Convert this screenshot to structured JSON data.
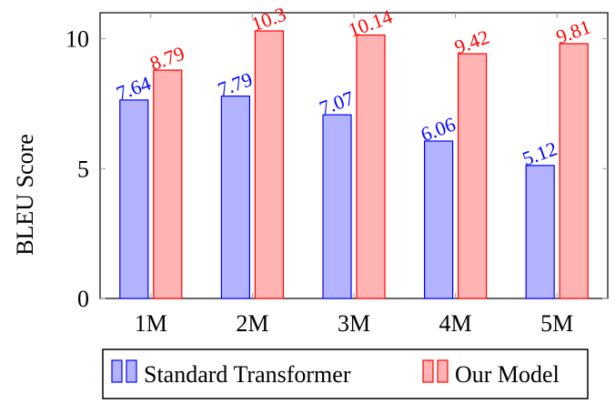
{
  "chart_data": {
    "type": "bar",
    "categories": [
      "1M",
      "2M",
      "3M",
      "4M",
      "5M"
    ],
    "series": [
      {
        "name": "Standard Transformer",
        "values": [
          7.64,
          7.79,
          7.07,
          6.06,
          5.12
        ],
        "labels": [
          "7.64",
          "7.79",
          "7.07",
          "6.06",
          "5.12"
        ],
        "fill": "#b3b3ff",
        "stroke": "#0000ff"
      },
      {
        "name": "Our Model",
        "values": [
          8.79,
          10.3,
          10.14,
          9.42,
          9.81
        ],
        "labels": [
          "8.79",
          "10.3",
          "10.14",
          "9.42",
          "9.81"
        ],
        "fill": "#ffb3b3",
        "stroke": "#ff0000"
      }
    ],
    "ylabel": "BLEU Score",
    "xlabel": "",
    "ylim": [
      0,
      11
    ],
    "yticks": [
      0,
      5,
      10
    ],
    "ytick_labels": [
      "0",
      "5",
      "10"
    ],
    "legend_position": "bottom",
    "grid": false
  }
}
